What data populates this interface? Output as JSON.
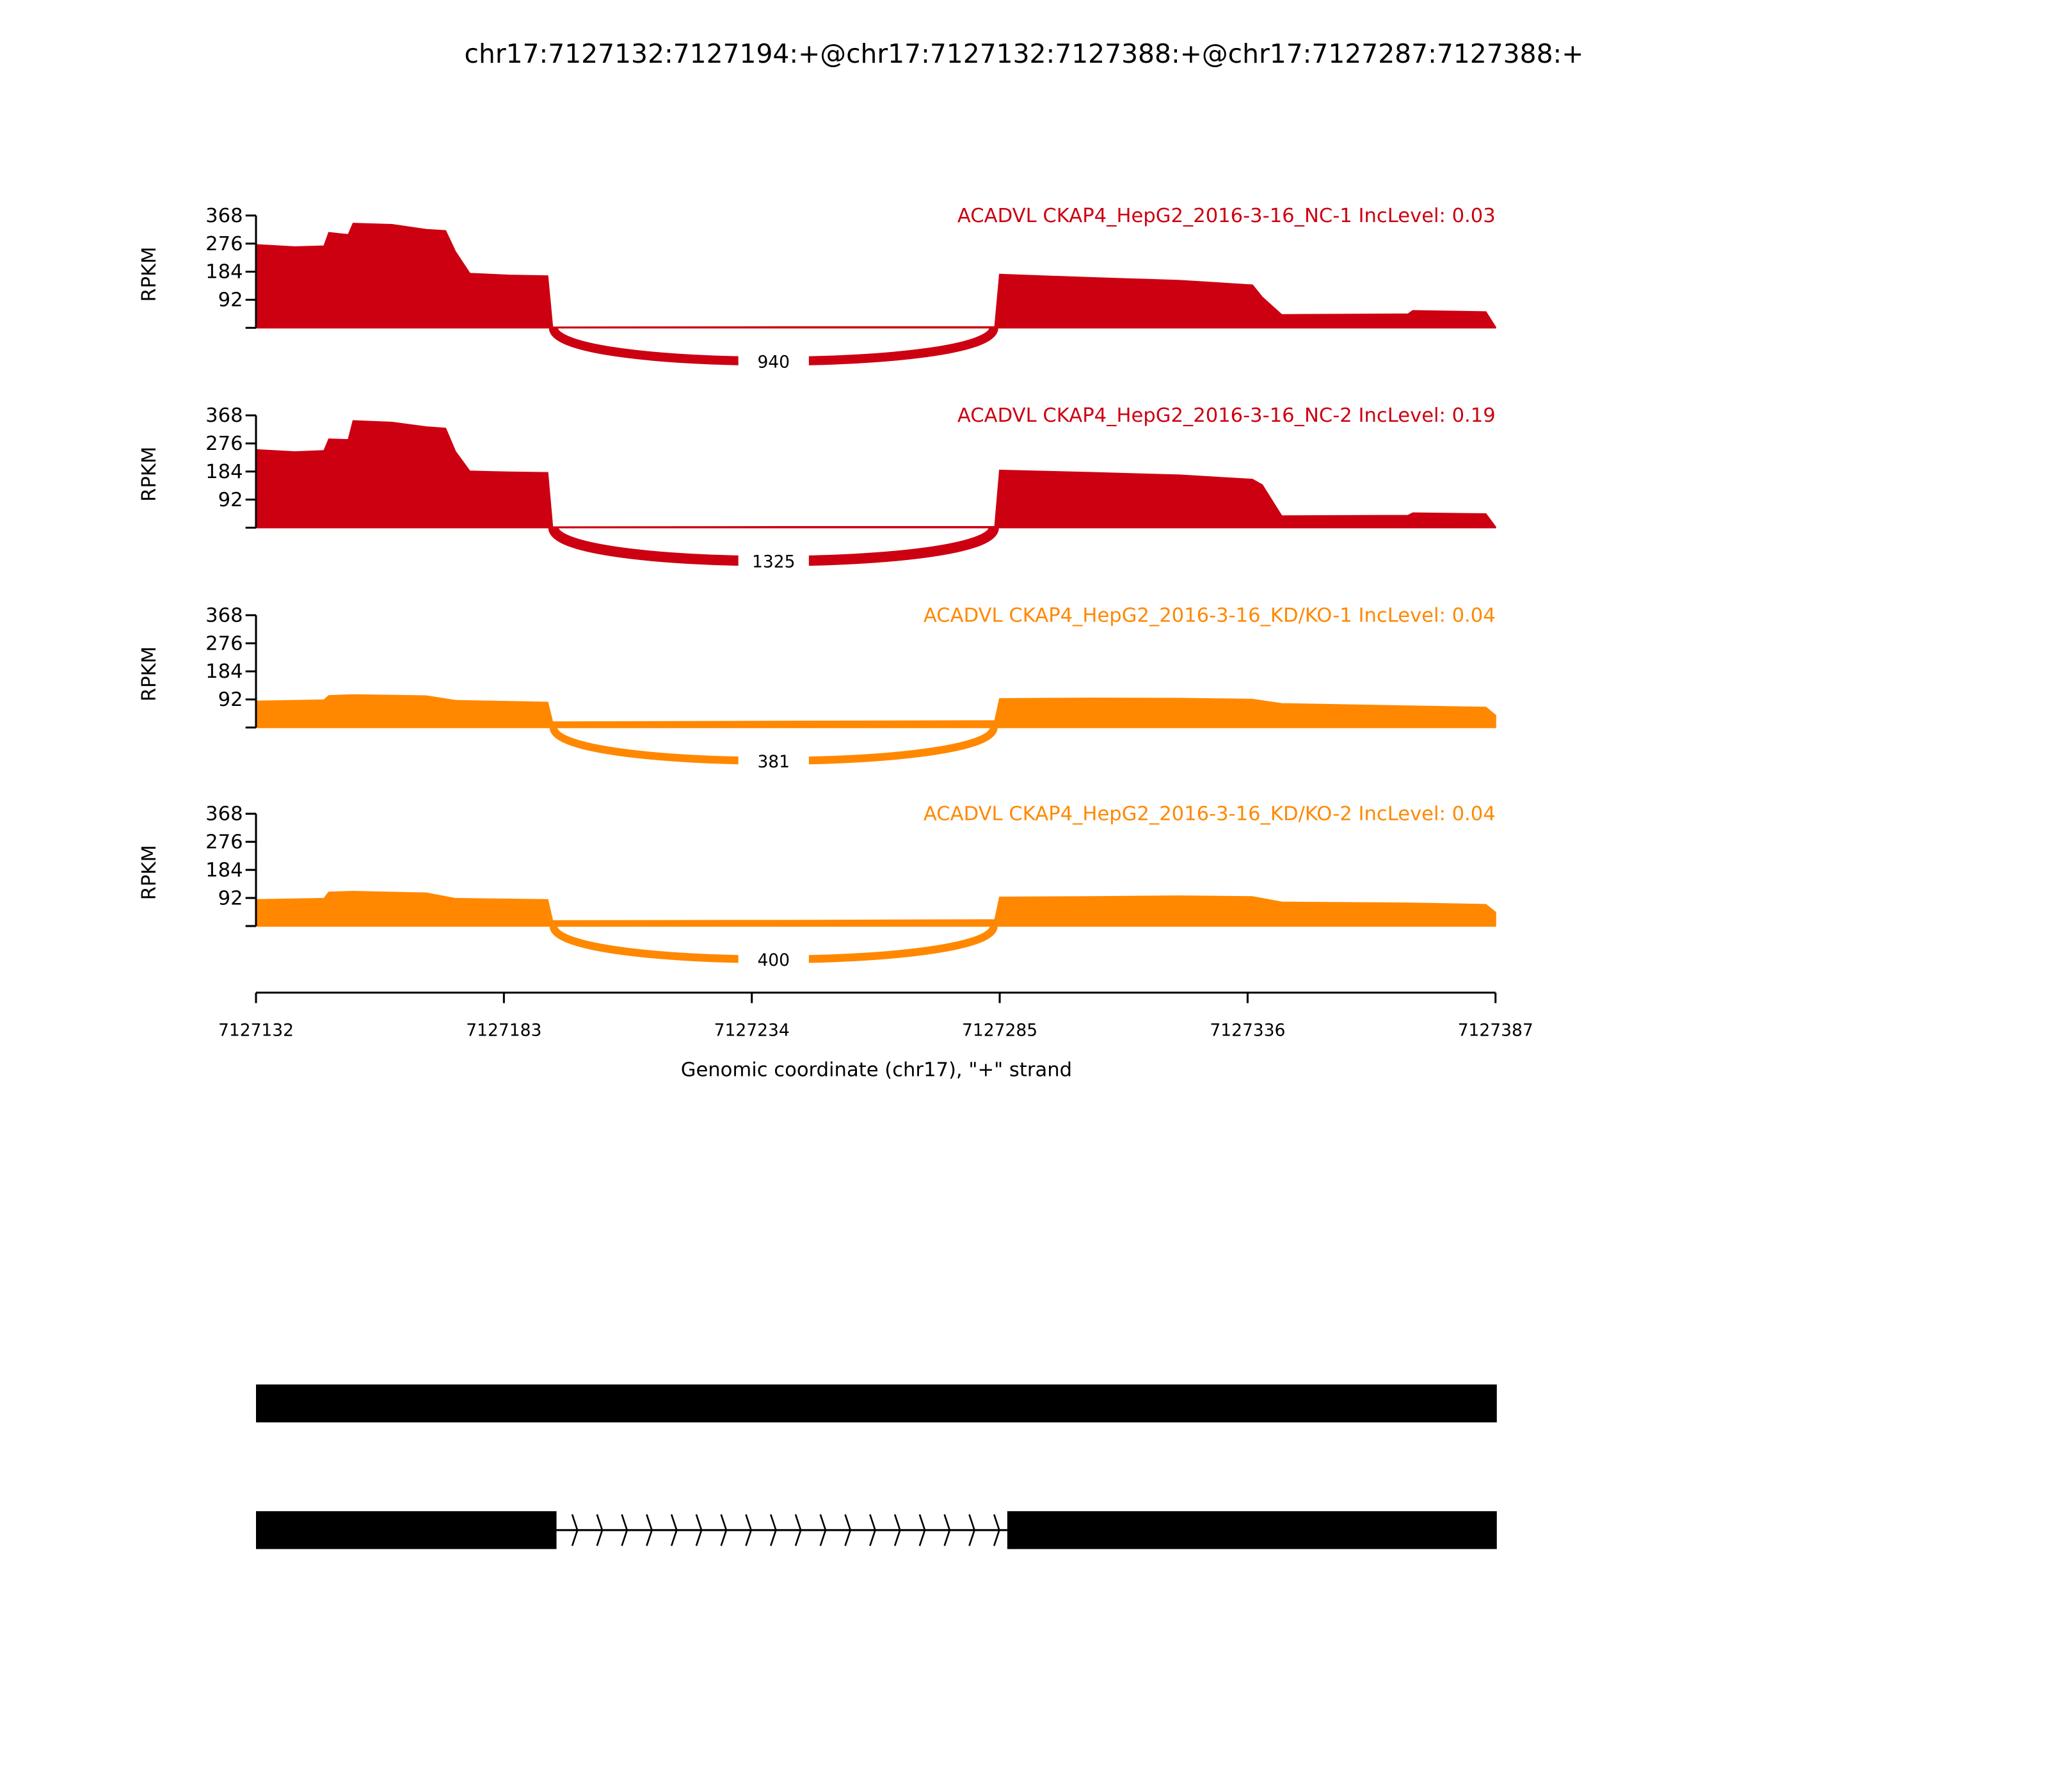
{
  "chart_data": {
    "type": "area",
    "title": "chr17:7127132:7127194:+@chr17:7127132:7127388:+@chr17:7127287:7127388:+",
    "xlabel": "Genomic coordinate (chr17), \"+\" strand",
    "ylabel": "RPKM",
    "xlim": [
      7127132,
      7127387
    ],
    "ylim": [
      0,
      368
    ],
    "x_ticks": [
      "7127132",
      "7127183",
      "7127234",
      "7127285",
      "7127336",
      "7127387"
    ],
    "y_ticks": [
      "92",
      "184",
      "276",
      "368"
    ],
    "samples": [
      {
        "label": "ACADVL CKAP4_HepG2_2016-3-16_NC-1 IncLevel: 0.03",
        "color": "#cc0011",
        "coverage": [
          [
            7127132,
            272
          ],
          [
            7127140,
            265
          ],
          [
            7127146,
            268
          ],
          [
            7127147,
            312
          ],
          [
            7127149,
            308
          ],
          [
            7127151,
            305
          ],
          [
            7127152,
            342
          ],
          [
            7127160,
            338
          ],
          [
            7127167,
            322
          ],
          [
            7127171,
            318
          ],
          [
            7127173,
            250
          ],
          [
            7127176,
            178
          ],
          [
            7127184,
            172
          ],
          [
            7127192,
            170
          ],
          [
            7127193,
            2
          ],
          [
            7127240,
            3
          ],
          [
            7127284,
            3
          ],
          [
            7127285,
            175
          ],
          [
            7127304,
            164
          ],
          [
            7127322,
            155
          ],
          [
            7127337,
            140
          ],
          [
            7127339,
            100
          ],
          [
            7127343,
            43
          ],
          [
            7127369,
            45
          ],
          [
            7127370,
            56
          ],
          [
            7127385,
            52
          ],
          [
            7127387,
            2
          ]
        ],
        "junction": {
          "start": 7127194,
          "end": 7127287,
          "count": "940"
        }
      },
      {
        "label": "ACADVL CKAP4_HepG2_2016-3-16_NC-2 IncLevel: 0.19",
        "color": "#cc0011",
        "coverage": [
          [
            7127132,
            255
          ],
          [
            7127140,
            248
          ],
          [
            7127146,
            252
          ],
          [
            7127147,
            290
          ],
          [
            7127151,
            288
          ],
          [
            7127152,
            350
          ],
          [
            7127160,
            345
          ],
          [
            7127167,
            330
          ],
          [
            7127171,
            325
          ],
          [
            7127173,
            250
          ],
          [
            7127176,
            185
          ],
          [
            7127184,
            182
          ],
          [
            7127192,
            180
          ],
          [
            7127193,
            2
          ],
          [
            7127240,
            3
          ],
          [
            7127284,
            3
          ],
          [
            7127285,
            188
          ],
          [
            7127304,
            180
          ],
          [
            7127322,
            172
          ],
          [
            7127337,
            158
          ],
          [
            7127339,
            140
          ],
          [
            7127343,
            38
          ],
          [
            7127369,
            40
          ],
          [
            7127370,
            48
          ],
          [
            7127385,
            45
          ],
          [
            7127387,
            2
          ]
        ],
        "junction": {
          "start": 7127194,
          "end": 7127287,
          "count": "1325"
        }
      },
      {
        "label": "ACADVL CKAP4_HepG2_2016-3-16_KD/KO-1 IncLevel: 0.04",
        "color": "#ff8800",
        "coverage": [
          [
            7127132,
            86
          ],
          [
            7127146,
            90
          ],
          [
            7127147,
            104
          ],
          [
            7127152,
            107
          ],
          [
            7127167,
            103
          ],
          [
            7127173,
            88
          ],
          [
            7127192,
            82
          ],
          [
            7127193,
            18
          ],
          [
            7127240,
            20
          ],
          [
            7127284,
            22
          ],
          [
            7127285,
            94
          ],
          [
            7127304,
            96
          ],
          [
            7127322,
            95
          ],
          [
            7127337,
            92
          ],
          [
            7127343,
            78
          ],
          [
            7127369,
            70
          ],
          [
            7127385,
            66
          ],
          [
            7127387,
            40
          ]
        ],
        "junction": {
          "start": 7127194,
          "end": 7127287,
          "count": "381"
        }
      },
      {
        "label": "ACADVL CKAP4_HepG2_2016-3-16_KD/KO-2 IncLevel: 0.04",
        "color": "#ff8800",
        "coverage": [
          [
            7127132,
            86
          ],
          [
            7127146,
            90
          ],
          [
            7127147,
            111
          ],
          [
            7127152,
            113
          ],
          [
            7127167,
            108
          ],
          [
            7127173,
            90
          ],
          [
            7127192,
            86
          ],
          [
            7127193,
            17
          ],
          [
            7127240,
            18
          ],
          [
            7127284,
            20
          ],
          [
            7127285,
            94
          ],
          [
            7127304,
            96
          ],
          [
            7127322,
            98
          ],
          [
            7127337,
            96
          ],
          [
            7127343,
            78
          ],
          [
            7127369,
            75
          ],
          [
            7127385,
            70
          ],
          [
            7127387,
            45
          ]
        ],
        "junction": {
          "start": 7127194,
          "end": 7127287,
          "count": "400"
        }
      }
    ],
    "gene_models": [
      {
        "exons": [
          [
            7127132,
            7127388
          ]
        ]
      },
      {
        "exons": [
          [
            7127132,
            7127194
          ],
          [
            7127287,
            7127388
          ]
        ]
      }
    ]
  }
}
